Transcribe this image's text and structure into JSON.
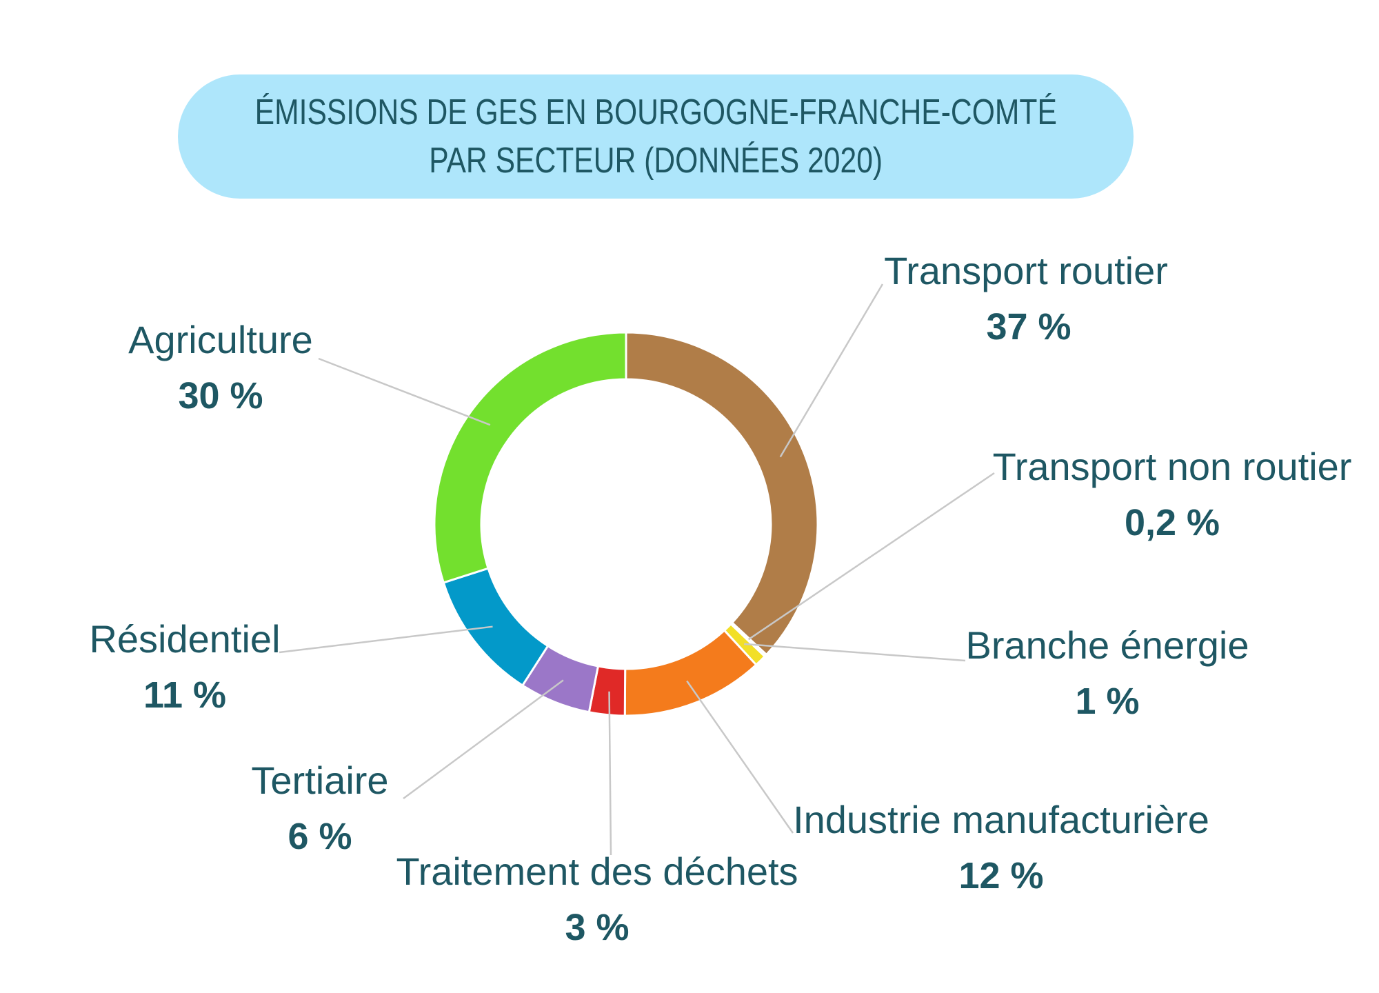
{
  "chart_data": {
    "type": "pie",
    "donut": true,
    "title": "ÉMISSIONS DE GES EN BOURGOGNE-FRANCHE-COMTÉ PAR SECTEUR (DONNÉES 2020)",
    "title_lines": [
      "ÉMISSIONS DE GES EN BOURGOGNE-FRANCHE-COMTÉ",
      "PAR SECTEUR (DONNÉES 2020)"
    ],
    "slices": [
      {
        "name": "Transport routier",
        "value": 37,
        "label": "37 %",
        "color": "#b07d48"
      },
      {
        "name": "Transport non routier",
        "value": 0.2,
        "label": "0,2 %",
        "color": "#f2f2f2"
      },
      {
        "name": "Branche énergie",
        "value": 1,
        "label": "1 %",
        "color": "#f2df27"
      },
      {
        "name": "Industrie manufacturière",
        "value": 12,
        "label": "12 %",
        "color": "#f47b1c"
      },
      {
        "name": "Traitement des déchets",
        "value": 3,
        "label": "3 %",
        "color": "#e02927"
      },
      {
        "name": "Tertiaire",
        "value": 6,
        "label": "6 %",
        "color": "#9b77c8"
      },
      {
        "name": "Résidentiel",
        "value": 11,
        "label": "11 %",
        "color": "#0399c9"
      },
      {
        "name": "Agriculture",
        "value": 30,
        "label": "30 %",
        "color": "#73e02e"
      }
    ],
    "label_color": "#1e5763",
    "title_background": "#aee6fb"
  }
}
